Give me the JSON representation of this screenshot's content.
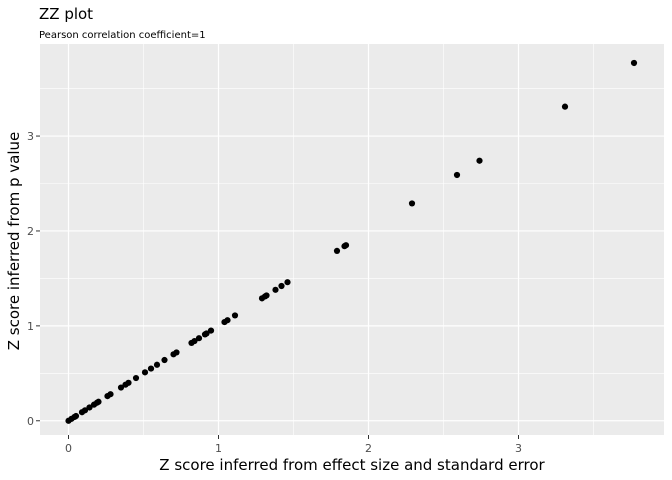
{
  "chart_data": {
    "type": "scatter",
    "title": "ZZ plot",
    "subtitle": "Pearson correlation coefficient=1",
    "xlabel": "Z score inferred from effect size and standard error",
    "ylabel": "Z score inferred from p value",
    "xlim": [
      -0.19,
      3.97
    ],
    "ylim": [
      -0.15,
      3.97
    ],
    "xticks": [
      0,
      1,
      2,
      3
    ],
    "yticks": [
      0,
      1,
      2,
      3
    ],
    "grid": true,
    "panel_color": "#ebebeb",
    "point_color": "#000000",
    "points": [
      [
        0.0,
        0.0
      ],
      [
        0.02,
        0.02
      ],
      [
        0.04,
        0.04
      ],
      [
        0.05,
        0.05
      ],
      [
        0.09,
        0.09
      ],
      [
        0.11,
        0.11
      ],
      [
        0.14,
        0.14
      ],
      [
        0.17,
        0.17
      ],
      [
        0.19,
        0.19
      ],
      [
        0.2,
        0.2
      ],
      [
        0.26,
        0.26
      ],
      [
        0.28,
        0.28
      ],
      [
        0.35,
        0.35
      ],
      [
        0.38,
        0.38
      ],
      [
        0.4,
        0.4
      ],
      [
        0.45,
        0.45
      ],
      [
        0.51,
        0.51
      ],
      [
        0.55,
        0.55
      ],
      [
        0.59,
        0.59
      ],
      [
        0.64,
        0.64
      ],
      [
        0.7,
        0.7
      ],
      [
        0.72,
        0.72
      ],
      [
        0.82,
        0.82
      ],
      [
        0.84,
        0.84
      ],
      [
        0.87,
        0.87
      ],
      [
        0.91,
        0.91
      ],
      [
        0.92,
        0.92
      ],
      [
        0.95,
        0.95
      ],
      [
        1.04,
        1.04
      ],
      [
        1.06,
        1.06
      ],
      [
        1.11,
        1.11
      ],
      [
        1.29,
        1.29
      ],
      [
        1.31,
        1.31
      ],
      [
        1.32,
        1.32
      ],
      [
        1.38,
        1.38
      ],
      [
        1.42,
        1.42
      ],
      [
        1.46,
        1.46
      ],
      [
        1.79,
        1.79
      ],
      [
        1.84,
        1.84
      ],
      [
        1.85,
        1.85
      ],
      [
        2.29,
        2.29
      ],
      [
        2.59,
        2.59
      ],
      [
        2.74,
        2.74
      ],
      [
        3.31,
        3.31
      ],
      [
        3.77,
        3.77
      ]
    ]
  }
}
